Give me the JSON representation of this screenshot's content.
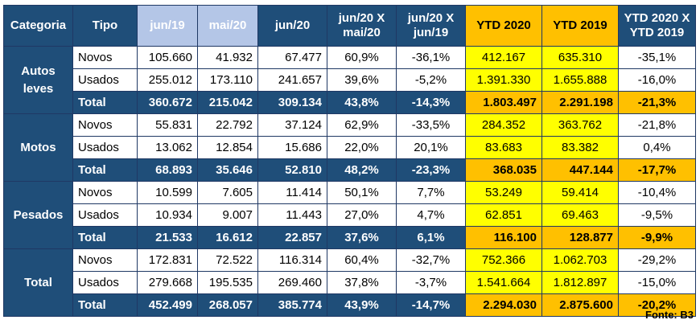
{
  "headers": {
    "categoria": "Categoria",
    "tipo": "Tipo",
    "jun19": "jun/19",
    "mai20": "mai/20",
    "jun20": "jun/20",
    "jun20_mai20": "jun/20 X mai/20",
    "jun20_jun19": "jun/20 X jun/19",
    "ytd2020": "YTD 2020",
    "ytd2019": "YTD 2019",
    "ytd_var": "YTD 2020 X YTD 2019"
  },
  "groups": [
    {
      "category": "Autos leves",
      "rows": [
        {
          "tipo": "Novos",
          "jun19": "105.660",
          "mai20": "41.932",
          "jun20": "67.477",
          "var_mai": "60,9%",
          "var_jun": "-36,1%",
          "ytd2020": "412.167",
          "ytd2019": "635.310",
          "ytd_var": "-35,1%"
        },
        {
          "tipo": "Usados",
          "jun19": "255.012",
          "mai20": "173.110",
          "jun20": "241.657",
          "var_mai": "39,6%",
          "var_jun": "-5,2%",
          "ytd2020": "1.391.330",
          "ytd2019": "1.655.888",
          "ytd_var": "-16,0%"
        },
        {
          "tipo": "Total",
          "jun19": "360.672",
          "mai20": "215.042",
          "jun20": "309.134",
          "var_mai": "43,8%",
          "var_jun": "-14,3%",
          "ytd2020": "1.803.497",
          "ytd2019": "2.291.198",
          "ytd_var": "-21,3%"
        }
      ]
    },
    {
      "category": "Motos",
      "rows": [
        {
          "tipo": "Novos",
          "jun19": "55.831",
          "mai20": "22.792",
          "jun20": "37.124",
          "var_mai": "62,9%",
          "var_jun": "-33,5%",
          "ytd2020": "284.352",
          "ytd2019": "363.762",
          "ytd_var": "-21,8%"
        },
        {
          "tipo": "Usados",
          "jun19": "13.062",
          "mai20": "12.854",
          "jun20": "15.686",
          "var_mai": "22,0%",
          "var_jun": "20,1%",
          "ytd2020": "83.683",
          "ytd2019": "83.382",
          "ytd_var": "0,4%"
        },
        {
          "tipo": "Total",
          "jun19": "68.893",
          "mai20": "35.646",
          "jun20": "52.810",
          "var_mai": "48,2%",
          "var_jun": "-23,3%",
          "ytd2020": "368.035",
          "ytd2019": "447.144",
          "ytd_var": "-17,7%"
        }
      ]
    },
    {
      "category": "Pesados",
      "rows": [
        {
          "tipo": "Novos",
          "jun19": "10.599",
          "mai20": "7.605",
          "jun20": "11.414",
          "var_mai": "50,1%",
          "var_jun": "7,7%",
          "ytd2020": "53.249",
          "ytd2019": "59.414",
          "ytd_var": "-10,4%"
        },
        {
          "tipo": "Usados",
          "jun19": "10.934",
          "mai20": "9.007",
          "jun20": "11.443",
          "var_mai": "27,0%",
          "var_jun": "4,7%",
          "ytd2020": "62.851",
          "ytd2019": "69.463",
          "ytd_var": "-9,5%"
        },
        {
          "tipo": "Total",
          "jun19": "21.533",
          "mai20": "16.612",
          "jun20": "22.857",
          "var_mai": "37,6%",
          "var_jun": "6,1%",
          "ytd2020": "116.100",
          "ytd2019": "128.877",
          "ytd_var": "-9,9%"
        }
      ]
    },
    {
      "category": "Total",
      "rows": [
        {
          "tipo": "Novos",
          "jun19": "172.831",
          "mai20": "72.522",
          "jun20": "116.314",
          "var_mai": "60,4%",
          "var_jun": "-32,7%",
          "ytd2020": "752.366",
          "ytd2019": "1.062.703",
          "ytd_var": "-29,2%"
        },
        {
          "tipo": "Usados",
          "jun19": "279.668",
          "mai20": "195.535",
          "jun20": "269.460",
          "var_mai": "37,8%",
          "var_jun": "-3,7%",
          "ytd2020": "1.541.664",
          "ytd2019": "1.812.897",
          "ytd_var": "-15,0%"
        },
        {
          "tipo": "Total",
          "jun19": "452.499",
          "mai20": "268.057",
          "jun20": "385.774",
          "var_mai": "43,9%",
          "var_jun": "-14,7%",
          "ytd2020": "2.294.030",
          "ytd2019": "2.875.600",
          "ytd_var": "-20,2%"
        }
      ]
    }
  ],
  "fonte": "Fonte: B3",
  "colors": {
    "header_dark": "#1f4e79",
    "header_light": "#b4c6e7",
    "gold": "#ffc000",
    "yellow": "#ffff00"
  }
}
